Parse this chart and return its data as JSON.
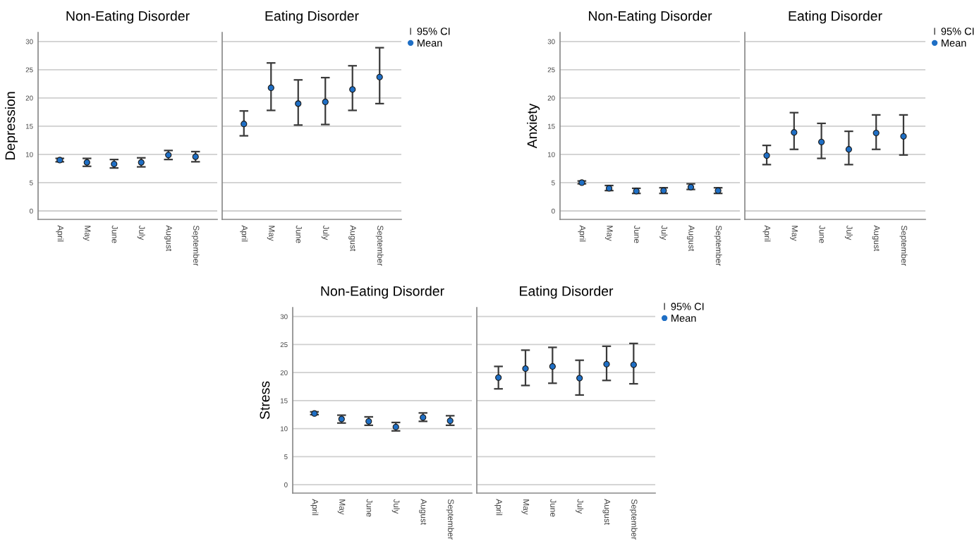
{
  "chart_data": [
    {
      "type": "scatter",
      "title": "Non-Eating Disorder",
      "ylabel": "Depression",
      "categories": [
        "April",
        "May",
        "June",
        "July",
        "August",
        "September"
      ],
      "marker": "circle",
      "grid": "y",
      "ylim": [
        -1.5,
        31.6
      ],
      "yticks": [
        0,
        5,
        10,
        15,
        20,
        25,
        30
      ],
      "series": [
        {
          "color": "#1f6fc5",
          "values": [
            9.0,
            8.6,
            8.3,
            8.6,
            9.9,
            9.6
          ],
          "errors": [
            [
              8.7,
              9.3
            ],
            [
              7.9,
              9.3
            ],
            [
              7.6,
              9.1
            ],
            [
              7.8,
              9.4
            ],
            [
              9.1,
              10.7
            ],
            [
              8.7,
              10.5
            ]
          ]
        }
      ]
    },
    {
      "type": "scatter",
      "title": "Eating Disorder",
      "categories": [
        "April",
        "May",
        "June",
        "July",
        "August",
        "September"
      ],
      "marker": "circle",
      "grid": "y",
      "ylim": [
        -1.5,
        31.6
      ],
      "yticks": [
        0,
        5,
        10,
        15,
        20,
        25,
        30
      ],
      "tick_labels": "x",
      "legend": "right",
      "annotations": [
        "95% CI"
      ],
      "series": [
        {
          "name": "Mean",
          "color": "#1f6fc5",
          "values": [
            15.4,
            21.8,
            19.0,
            19.3,
            21.5,
            23.7
          ],
          "errors": [
            [
              13.3,
              17.7
            ],
            [
              17.8,
              26.2
            ],
            [
              15.2,
              23.2
            ],
            [
              15.3,
              23.6
            ],
            [
              17.8,
              25.7
            ],
            [
              19.0,
              28.9
            ]
          ]
        }
      ]
    },
    {
      "type": "scatter",
      "title": "Non-Eating Disorder",
      "ylabel": "Anxiety",
      "categories": [
        "April",
        "May",
        "June",
        "July",
        "August",
        "September"
      ],
      "marker": "circle",
      "grid": "y",
      "ylim": [
        -1.5,
        31.6
      ],
      "yticks": [
        0,
        5,
        10,
        15,
        20,
        25,
        30
      ],
      "series": [
        {
          "color": "#1f6fc5",
          "values": [
            5.0,
            4.0,
            3.5,
            3.6,
            4.2,
            3.6
          ],
          "errors": [
            [
              4.8,
              5.3
            ],
            [
              3.6,
              4.5
            ],
            [
              3.1,
              4.0
            ],
            [
              3.1,
              4.1
            ],
            [
              3.8,
              4.8
            ],
            [
              3.1,
              4.1
            ]
          ]
        }
      ]
    },
    {
      "type": "scatter",
      "title": "Eating Disorder",
      "categories": [
        "April",
        "May",
        "June",
        "July",
        "August",
        "September"
      ],
      "marker": "circle",
      "grid": "y",
      "ylim": [
        -1.5,
        31.6
      ],
      "yticks": [
        0,
        5,
        10,
        15,
        20,
        25,
        30
      ],
      "tick_labels": "x",
      "legend": "right",
      "annotations": [
        "95% CI"
      ],
      "series": [
        {
          "name": "Mean",
          "color": "#1f6fc5",
          "values": [
            9.8,
            13.9,
            12.2,
            10.9,
            13.8,
            13.2
          ],
          "errors": [
            [
              8.2,
              11.6
            ],
            [
              10.9,
              17.4
            ],
            [
              9.3,
              15.5
            ],
            [
              8.2,
              14.1
            ],
            [
              10.9,
              17.0
            ],
            [
              9.9,
              17.0
            ]
          ]
        }
      ]
    },
    {
      "type": "scatter",
      "title": "Non-Eating Disorder",
      "ylabel": "Stress",
      "categories": [
        "April",
        "May",
        "June",
        "July",
        "August",
        "September"
      ],
      "marker": "circle",
      "grid": "y",
      "ylim": [
        -1.5,
        31.6
      ],
      "yticks": [
        0,
        5,
        10,
        15,
        20,
        25,
        30
      ],
      "series": [
        {
          "color": "#1f6fc5",
          "values": [
            12.7,
            11.7,
            11.3,
            10.3,
            12.0,
            11.4
          ],
          "errors": [
            [
              12.5,
              13.0
            ],
            [
              11.0,
              12.4
            ],
            [
              10.6,
              12.1
            ],
            [
              9.6,
              11.1
            ],
            [
              11.3,
              12.8
            ],
            [
              10.6,
              12.3
            ]
          ]
        }
      ]
    },
    {
      "type": "scatter",
      "title": "Eating Disorder",
      "categories": [
        "April",
        "May",
        "June",
        "July",
        "August",
        "September"
      ],
      "marker": "circle",
      "grid": "y",
      "ylim": [
        -1.5,
        31.6
      ],
      "yticks": [
        0,
        5,
        10,
        15,
        20,
        25,
        30
      ],
      "tick_labels": "x",
      "legend": "right",
      "annotations": [
        "95% CI"
      ],
      "series": [
        {
          "name": "Mean",
          "color": "#1f6fc5",
          "values": [
            19.1,
            20.7,
            21.1,
            19.0,
            21.5,
            21.4
          ],
          "errors": [
            [
              17.1,
              21.1
            ],
            [
              17.7,
              24.0
            ],
            [
              18.1,
              24.5
            ],
            [
              16.0,
              22.2
            ],
            [
              18.6,
              24.7
            ],
            [
              18.0,
              25.2
            ]
          ]
        }
      ]
    }
  ]
}
